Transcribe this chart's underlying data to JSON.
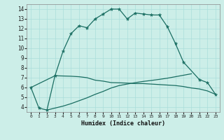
{
  "xlabel": "Humidex (Indice chaleur)",
  "background_color": "#cceee8",
  "grid_color": "#aaddda",
  "line_color": "#1a6e62",
  "xlim": [
    -0.5,
    23.5
  ],
  "ylim": [
    3.5,
    14.5
  ],
  "xticks": [
    0,
    1,
    2,
    3,
    4,
    5,
    6,
    7,
    8,
    9,
    10,
    11,
    12,
    13,
    14,
    15,
    16,
    17,
    18,
    19,
    20,
    21,
    22,
    23
  ],
  "yticks": [
    4,
    5,
    6,
    7,
    8,
    9,
    10,
    11,
    12,
    13,
    14
  ],
  "series": [
    {
      "x": [
        0,
        1,
        2,
        3,
        4,
        5,
        6,
        7,
        8,
        9,
        10,
        11,
        12,
        13,
        14,
        15,
        16,
        17,
        18,
        19,
        21,
        22,
        23
      ],
      "y": [
        6.0,
        3.9,
        3.7,
        7.2,
        9.7,
        11.5,
        12.3,
        12.1,
        13.0,
        13.5,
        14.0,
        14.0,
        13.0,
        13.6,
        13.5,
        13.4,
        13.4,
        12.2,
        10.5,
        8.6,
        6.8,
        6.5,
        5.3
      ],
      "marker": true,
      "linewidth": 0.9
    },
    {
      "x": [
        0,
        3,
        5,
        6,
        7,
        8,
        9,
        10,
        11,
        12,
        13,
        14,
        15,
        16,
        17,
        18,
        19,
        20,
        21,
        22,
        23
      ],
      "y": [
        6.0,
        7.2,
        7.15,
        7.1,
        7.0,
        6.75,
        6.65,
        6.5,
        6.48,
        6.45,
        6.4,
        6.4,
        6.35,
        6.3,
        6.25,
        6.2,
        6.1,
        5.95,
        5.85,
        5.65,
        5.3
      ],
      "marker": false,
      "linewidth": 0.9
    },
    {
      "x": [
        2,
        4,
        5,
        6,
        7,
        8,
        9,
        10,
        11,
        12,
        13,
        14,
        15,
        16,
        17,
        18,
        19,
        20
      ],
      "y": [
        3.7,
        4.1,
        4.35,
        4.65,
        4.95,
        5.3,
        5.6,
        5.95,
        6.2,
        6.35,
        6.5,
        6.62,
        6.72,
        6.83,
        6.95,
        7.1,
        7.25,
        7.4
      ],
      "marker": false,
      "linewidth": 0.9
    }
  ]
}
